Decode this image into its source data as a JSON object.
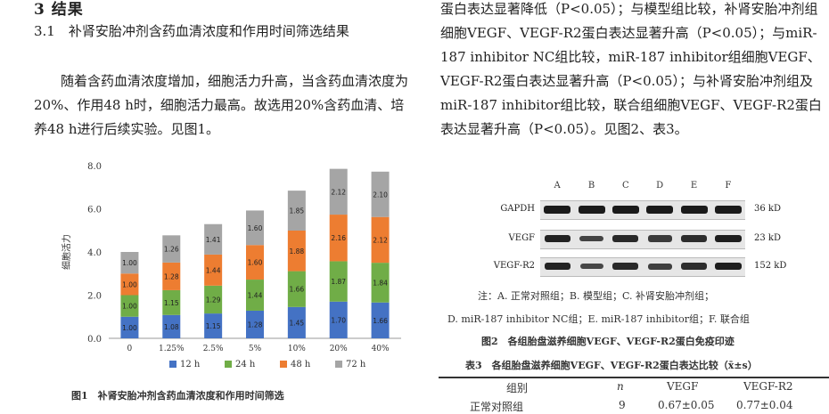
{
  "section": {
    "title": "3  结果"
  },
  "subsection": {
    "title": "3.1　补肾安胎冲剂含药血清浓度和作用时间筛选结果"
  },
  "left_paragraph": "随着含药血清浓度增加，细胞活力升高，当含药血清浓度为20%、作用48 h时，细胞活力最高。故选用20%含药血清、培养48 h进行后续实验。见图1。",
  "right_paragraph": "蛋白表达显著降低（P<0.05）；与模型组比较，补肾安胎冲剂组细胞VEGF、VEGF-R2蛋白表达显著升高（P<0.05）；与miR-187 inhibitor NC组比较，miR-187 inhibitor组细胞VEGF、VEGF-R2蛋白表达显著升高（P<0.05）；与补肾安胎冲剂组及miR-187 inhibitor组比较，联合组细胞VEGF、VEGF-R2蛋白表达显著升高（P<0.05）。见图2、表3。",
  "chart_data": {
    "type": "bar",
    "stacked": true,
    "ylabel": "细胞活力",
    "ylim": [
      0,
      8
    ],
    "yticks": [
      "0.0",
      "2.0",
      "4.0",
      "6.0",
      "8.0"
    ],
    "categories": [
      "0",
      "1.25%",
      "2.5%",
      "5%",
      "10%",
      "20%",
      "40%"
    ],
    "series": [
      {
        "name": "12 h",
        "color": "#4472c4",
        "values": [
          1.0,
          1.08,
          1.15,
          1.28,
          1.45,
          1.7,
          1.66
        ]
      },
      {
        "name": "24 h",
        "color": "#70ad47",
        "values": [
          1.0,
          1.15,
          1.29,
          1.44,
          1.66,
          1.87,
          1.84
        ]
      },
      {
        "name": "48 h",
        "color": "#ed7d31",
        "values": [
          1.0,
          1.28,
          1.44,
          1.6,
          1.88,
          2.16,
          2.12
        ]
      },
      {
        "name": "72 h",
        "color": "#a5a5a5",
        "values": [
          1.0,
          1.26,
          1.41,
          1.6,
          1.85,
          2.12,
          2.1
        ]
      }
    ],
    "legend": "bottom",
    "grid": false
  },
  "fig1_caption": "图1　补肾安胎冲剂含药血清浓度和作用时间筛选",
  "fig2": {
    "lanes": [
      "A",
      "B",
      "C",
      "D",
      "E",
      "F"
    ],
    "rows": [
      {
        "label": "GAPDH",
        "kd": "36 kD",
        "intensity": [
          1,
          1,
          1,
          1,
          1,
          1
        ]
      },
      {
        "label": "VEGF",
        "kd": "23 kD",
        "intensity": [
          0.9,
          0.55,
          0.85,
          0.65,
          0.8,
          0.95
        ]
      },
      {
        "label": "VEGF-R2",
        "kd": "152 kD",
        "intensity": [
          0.9,
          0.5,
          0.85,
          0.6,
          0.8,
          0.95
        ]
      }
    ],
    "note_line1": "注：A. 正常对照组；B. 模型组；C. 补肾安胎冲剂组；",
    "note_line2": "D. miR-187 inhibitor NC组；E. miR-187 inhibitor组；F. 联合组",
    "caption": "图2　各组胎盘滋养细胞VEGF、VEGF-R2蛋白免疫印迹"
  },
  "table3": {
    "caption": "表3　各组胎盘滋养细胞VEGF、VEGF-R2蛋白表达比较（x̄±s）",
    "headers": [
      "组别",
      "n",
      "VEGF",
      "VEGF-R2"
    ],
    "first_row": [
      "正常对照组",
      "9",
      "0.67±0.05",
      "0.77±0.04"
    ]
  }
}
